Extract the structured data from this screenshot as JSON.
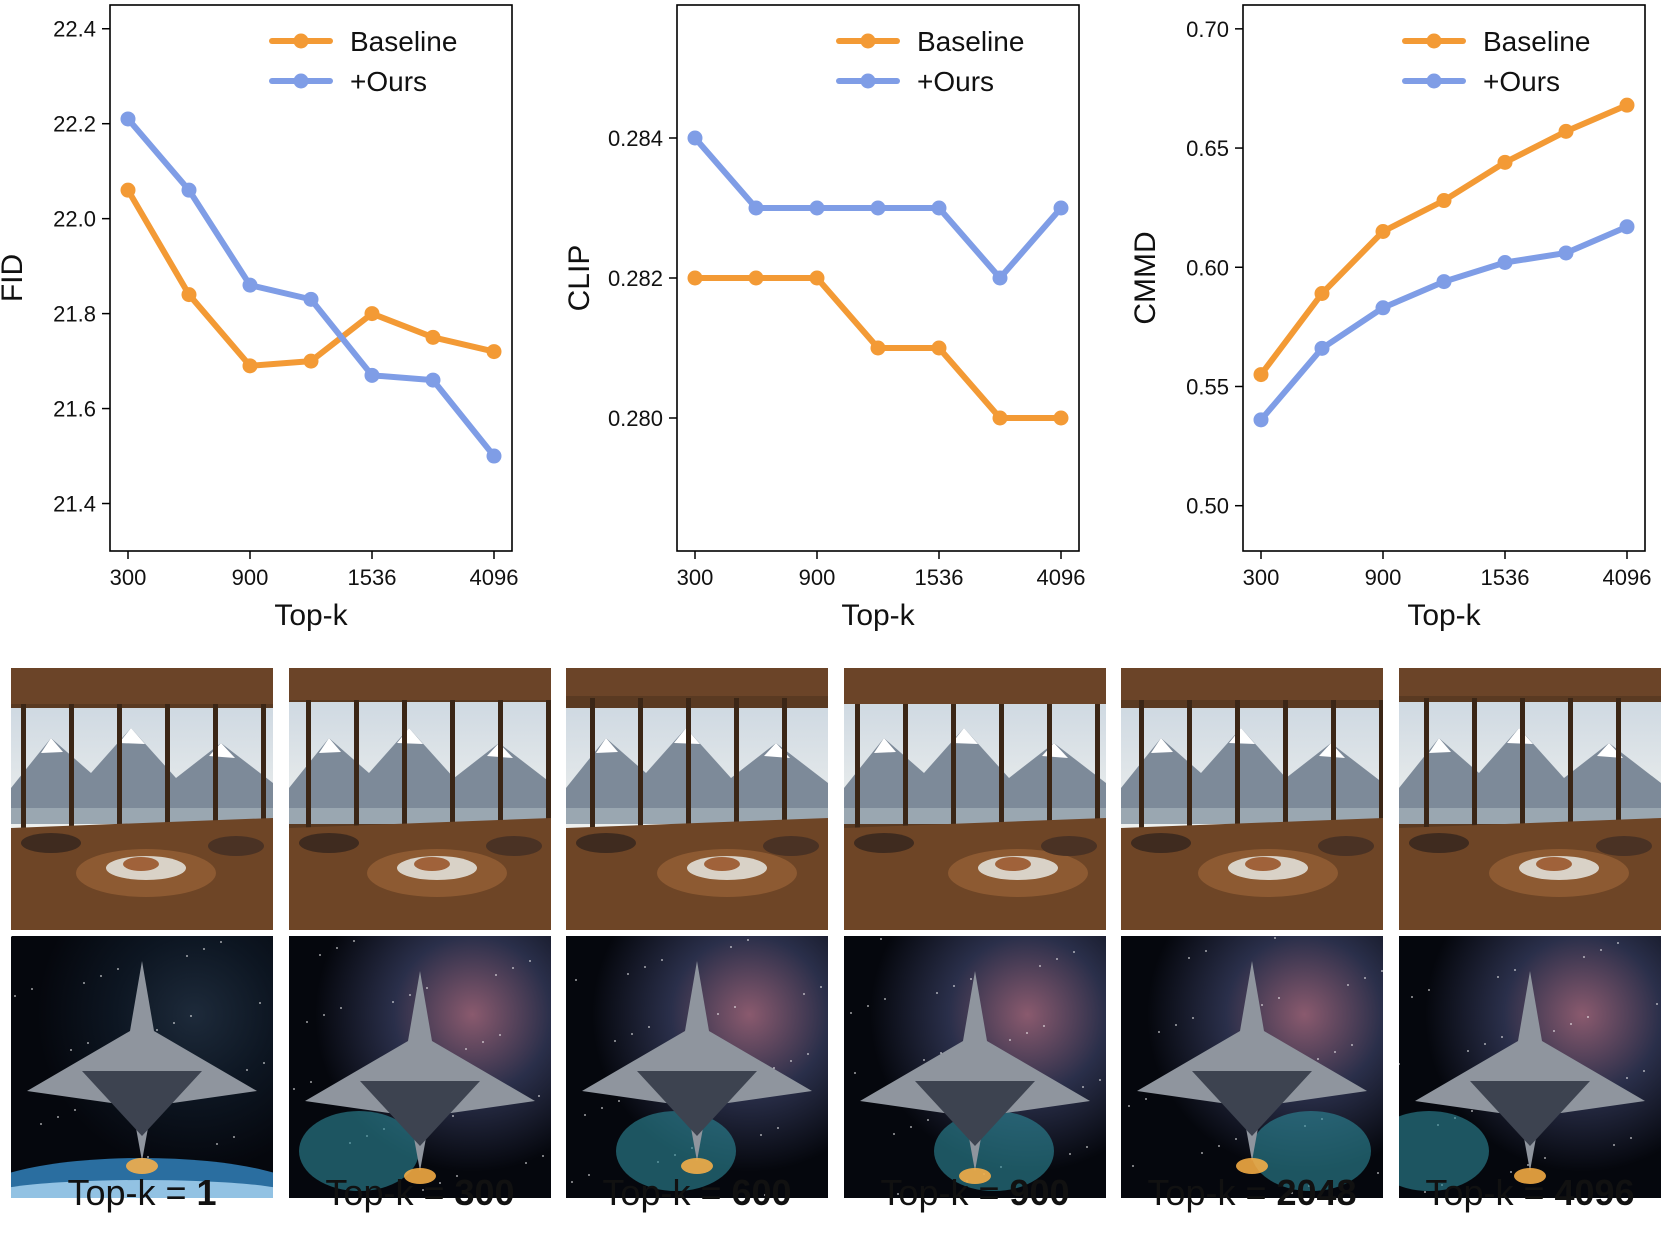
{
  "colors": {
    "baseline": "#f39a35",
    "ours": "#7f9de6"
  },
  "chart_data": [
    {
      "type": "line",
      "ylabel": "FID",
      "xlabel": "Top-k",
      "x_ticks": [
        "300",
        "900",
        "1536",
        "4096"
      ],
      "x_tick_positions": [
        0,
        2,
        4,
        6
      ],
      "ylim": [
        21.3,
        22.45
      ],
      "y_ticks": [
        "21.4",
        "21.6",
        "21.8",
        "22.0",
        "22.2",
        "22.4"
      ],
      "legend": [
        "Baseline",
        "+Ours"
      ],
      "series": [
        {
          "name": "Baseline",
          "values": [
            22.06,
            21.84,
            21.69,
            21.7,
            21.8,
            21.75,
            21.72
          ]
        },
        {
          "name": "+Ours",
          "values": [
            22.21,
            22.06,
            21.86,
            21.83,
            21.67,
            21.66,
            21.5
          ]
        }
      ]
    },
    {
      "type": "line",
      "ylabel": "CLIP",
      "xlabel": "Top-k",
      "x_ticks": [
        "300",
        "900",
        "1536",
        "4096"
      ],
      "x_tick_positions": [
        0,
        2,
        4,
        6
      ],
      "ylim": [
        0.2781,
        0.2859
      ],
      "y_ticks": [
        "0.280",
        "0.282",
        "0.284"
      ],
      "legend": [
        "Baseline",
        "+Ours"
      ],
      "series": [
        {
          "name": "Baseline",
          "values": [
            0.282,
            0.282,
            0.282,
            0.281,
            0.281,
            0.28,
            0.28
          ]
        },
        {
          "name": "+Ours",
          "values": [
            0.284,
            0.283,
            0.283,
            0.283,
            0.283,
            0.282,
            0.283
          ]
        }
      ]
    },
    {
      "type": "line",
      "ylabel": "CMMD",
      "xlabel": "Top-k",
      "x_ticks": [
        "300",
        "900",
        "1536",
        "4096"
      ],
      "x_tick_positions": [
        0,
        2,
        4,
        6
      ],
      "ylim": [
        0.481,
        0.71
      ],
      "y_ticks": [
        "0.50",
        "0.55",
        "0.60",
        "0.65",
        "0.70"
      ],
      "legend": [
        "Baseline",
        "+Ours"
      ],
      "series": [
        {
          "name": "Baseline",
          "values": [
            0.555,
            0.589,
            0.615,
            0.628,
            0.644,
            0.657,
            0.668
          ]
        },
        {
          "name": "+Ours",
          "values": [
            0.536,
            0.566,
            0.583,
            0.594,
            0.602,
            0.606,
            0.617
          ]
        }
      ]
    }
  ],
  "captions": [
    {
      "prefix": "Top-k = ",
      "value": "1"
    },
    {
      "prefix": "Top-k = ",
      "value": "300"
    },
    {
      "prefix": "Top-k = ",
      "value": "600"
    },
    {
      "prefix": "Top-k = ",
      "value": "900"
    },
    {
      "prefix": "Top-k = ",
      "value": "2048"
    },
    {
      "prefix": "Top-k = ",
      "value": "4096"
    }
  ]
}
